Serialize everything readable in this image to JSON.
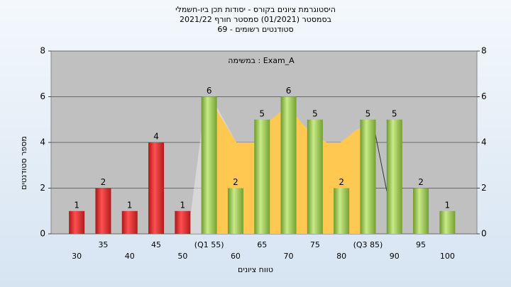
{
  "chart_data": {
    "type": "bar",
    "title": [
      "היסטוגרמת ציונים בקורס - יסודות תכן ביו-חשמלי",
      "בסמסטר  (01/2021)  סמסטר חורף 2021/22",
      "סטודנטים רשומים - 69"
    ],
    "annotation": "במשימה : Exam_A",
    "x_label": "טווח ציונים",
    "y_label": "מספר סטודנטים",
    "categories": [
      "30",
      "35",
      "40",
      "45",
      "50",
      "(Q1 55)",
      "60",
      "65",
      "70",
      "75",
      "80",
      "(Q3 85)",
      "90",
      "95",
      "100"
    ],
    "values": [
      1,
      2,
      1,
      4,
      1,
      6,
      2,
      5,
      6,
      5,
      2,
      5,
      5,
      2,
      1
    ],
    "colors": [
      "red",
      "red",
      "red",
      "red",
      "red",
      "green",
      "green",
      "green",
      "green",
      "green",
      "green",
      "green",
      "green",
      "green",
      "green"
    ],
    "ylim": [
      0,
      8
    ],
    "yticks": [
      0,
      2,
      4,
      6,
      8
    ],
    "grid": true
  }
}
